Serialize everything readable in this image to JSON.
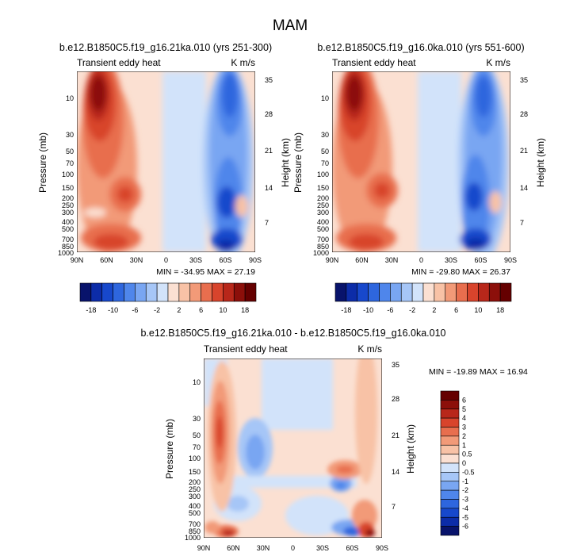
{
  "figure": {
    "title": "MAM"
  },
  "chart_data": [
    {
      "type": "heatmap",
      "title": "b.e12.B1850C5.f19_g16.21ka.010 (yrs 251-300)",
      "subtitle_left": "Transient eddy heat",
      "units": "K m/s",
      "ylabel": "Pressure (mb)",
      "ylabel_right": "Height (km)",
      "x_ticks": [
        "90N",
        "60N",
        "30N",
        "0",
        "30S",
        "60S",
        "90S"
      ],
      "y_ticks": [
        "10",
        "30",
        "50",
        "70",
        "100",
        "150",
        "200",
        "250",
        "300",
        "400",
        "500",
        "700",
        "850",
        "1000"
      ],
      "y_right_ticks": [
        "35",
        "28",
        "21",
        "14",
        "7"
      ],
      "stats": "MIN = -34.95  MAX = 27.19",
      "colorbar_labels": [
        "-18",
        "-10",
        "-6",
        "-2",
        "2",
        "6",
        "10",
        "18"
      ]
    },
    {
      "type": "heatmap",
      "title": "b.e12.B1850C5.f19_g16.0ka.010 (yrs 551-600)",
      "subtitle_left": "Transient eddy heat",
      "units": "K m/s",
      "ylabel": "Pressure (mb)",
      "ylabel_right": "Height (km)",
      "x_ticks": [
        "90N",
        "60N",
        "30N",
        "0",
        "30S",
        "60S",
        "90S"
      ],
      "y_ticks": [
        "10",
        "30",
        "50",
        "70",
        "100",
        "150",
        "200",
        "250",
        "300",
        "400",
        "500",
        "700",
        "850",
        "1000"
      ],
      "y_right_ticks": [
        "35",
        "28",
        "21",
        "14",
        "7"
      ],
      "stats": "MIN = -29.80  MAX = 26.37",
      "colorbar_labels": [
        "-18",
        "-10",
        "-6",
        "-2",
        "2",
        "6",
        "10",
        "18"
      ]
    },
    {
      "type": "heatmap",
      "title": "b.e12.B1850C5.f19_g16.21ka.010 - b.e12.B1850C5.f19_g16.0ka.010",
      "subtitle_left": "Transient eddy heat",
      "units": "K m/s",
      "ylabel": "Pressure (mb)",
      "ylabel_right": "Height (km)",
      "x_ticks": [
        "90N",
        "60N",
        "30N",
        "0",
        "30S",
        "60S",
        "90S"
      ],
      "y_ticks": [
        "10",
        "30",
        "50",
        "70",
        "100",
        "150",
        "200",
        "250",
        "300",
        "400",
        "500",
        "700",
        "850",
        "1000"
      ],
      "y_right_ticks": [
        "35",
        "28",
        "21",
        "14",
        "7"
      ],
      "stats": "MIN = -19.89  MAX = 16.94",
      "colorbar_labels": [
        "6",
        "5",
        "4",
        "3",
        "2",
        "1",
        "0.5",
        "0",
        "-0.5",
        "-1",
        "-2",
        "-3",
        "-4",
        "-5",
        "-6"
      ]
    }
  ],
  "colors": {
    "diverging": [
      "#08136b",
      "#0c2ca8",
      "#1748cc",
      "#2e66de",
      "#4f86eb",
      "#79a6f2",
      "#a6c6f7",
      "#d2e3fa",
      "#fbe0d2",
      "#f8c2a6",
      "#f29a78",
      "#e86e4e",
      "#d8442c",
      "#b8271a",
      "#8c0f0a",
      "#650000"
    ]
  }
}
